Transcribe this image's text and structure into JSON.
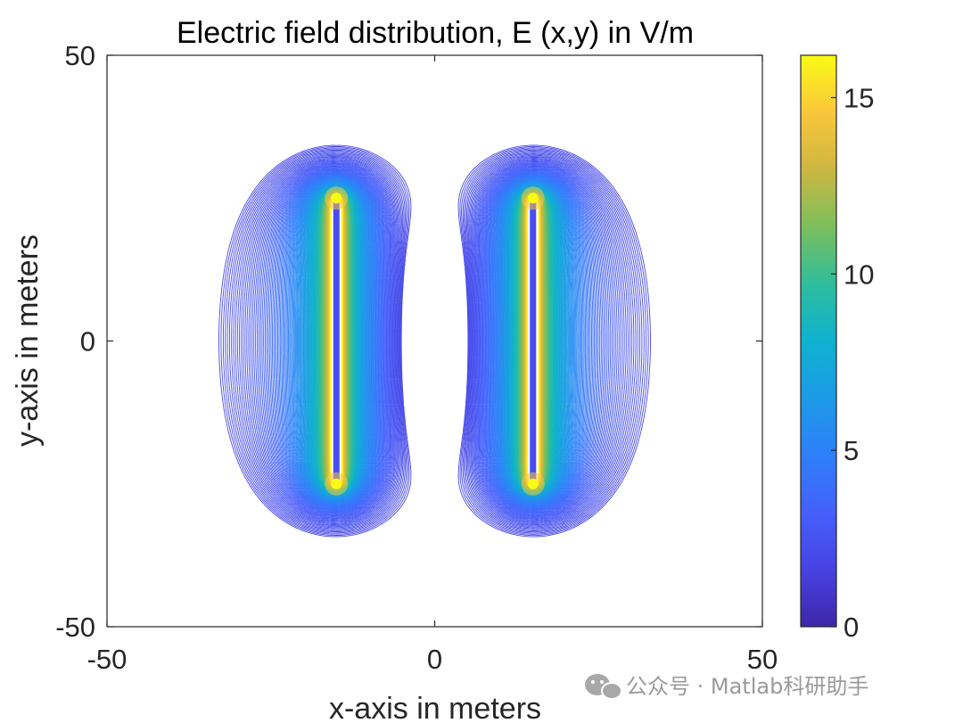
{
  "chart_data": {
    "type": "heatmap",
    "plot_style": "contour",
    "title": "Electric field distribution, E (x,y) in V/m",
    "xlabel": "x-axis in meters",
    "ylabel": "y-axis in meters",
    "xlim": [
      -50,
      50
    ],
    "ylim": [
      -50,
      50
    ],
    "xticks": [
      {
        "value": -50,
        "label": "-50"
      },
      {
        "value": 0,
        "label": "0"
      },
      {
        "value": 50,
        "label": "50"
      }
    ],
    "yticks": [
      {
        "value": -50,
        "label": "-50"
      },
      {
        "value": 0,
        "label": "0"
      },
      {
        "value": 50,
        "label": "50"
      }
    ],
    "colorbar": {
      "colormap": "parula",
      "range": [
        0,
        16.2
      ],
      "ticks": [
        {
          "value": 0,
          "label": "0"
        },
        {
          "value": 5,
          "label": "5"
        },
        {
          "value": 10,
          "label": "10"
        },
        {
          "value": 15,
          "label": "15"
        }
      ]
    },
    "plates": [
      {
        "x": -15,
        "y_range": [
          -25,
          25
        ]
      },
      {
        "x": 15,
        "y_range": [
          -25,
          25
        ]
      }
    ],
    "hot_spots": [
      {
        "x": -15,
        "y": 25
      },
      {
        "x": 15,
        "y": 25
      },
      {
        "x": -15,
        "y": -25
      },
      {
        "x": 15,
        "y": -25
      }
    ],
    "grid": false,
    "legend": "none"
  },
  "watermark": {
    "text": "公众号 · Matlab科研助手",
    "icon": "wechat-icon",
    "color": "#9a9a9a"
  }
}
